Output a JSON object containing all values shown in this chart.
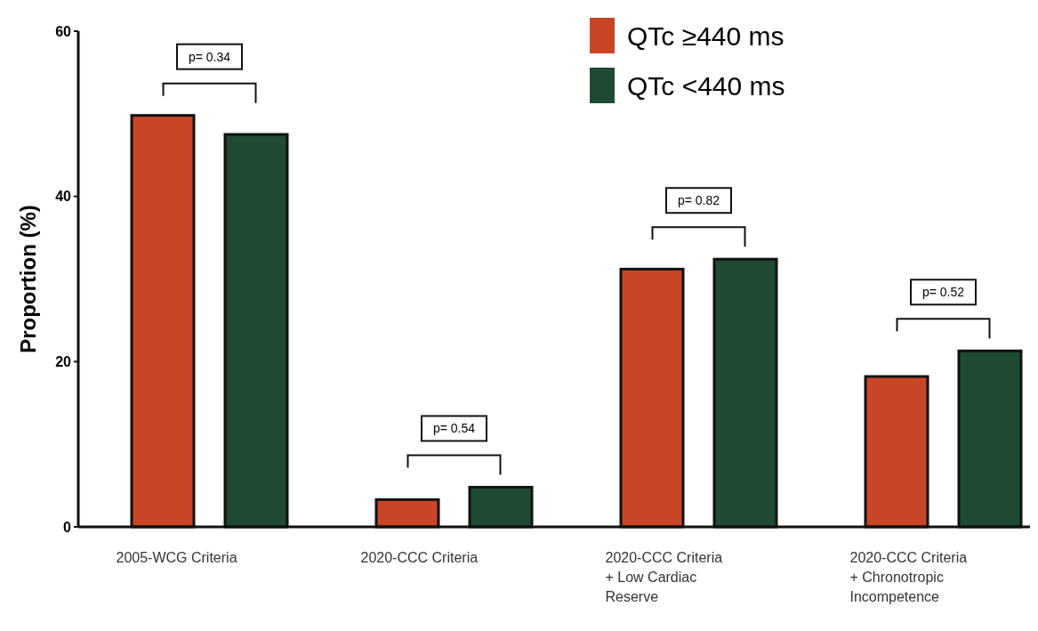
{
  "chart_data": {
    "type": "bar",
    "ylabel": "Proportion (%)",
    "categories": [
      "2005-WCG Criteria",
      "2020-CCC Criteria",
      "2020-CCC Criteria + Low Cardiac Reserve",
      "2020-CCC Criteria + Chronotropic Incompetence"
    ],
    "series": [
      {
        "name": "QTc ≥440 ms",
        "color": "#c84526",
        "values": [
          49.8,
          3.3,
          31.2,
          18.2
        ]
      },
      {
        "name": "QTc <440 ms",
        "color": "#1f4a33",
        "values": [
          47.5,
          4.8,
          32.4,
          21.3
        ]
      }
    ],
    "ylim": [
      0,
      60
    ],
    "yticks": [
      0,
      20,
      40,
      60
    ],
    "grid": false,
    "legend": "top right",
    "annotations": [
      "p= 0.34",
      "p= 0.54",
      "p= 0.82",
      "p= 0.52"
    ]
  }
}
